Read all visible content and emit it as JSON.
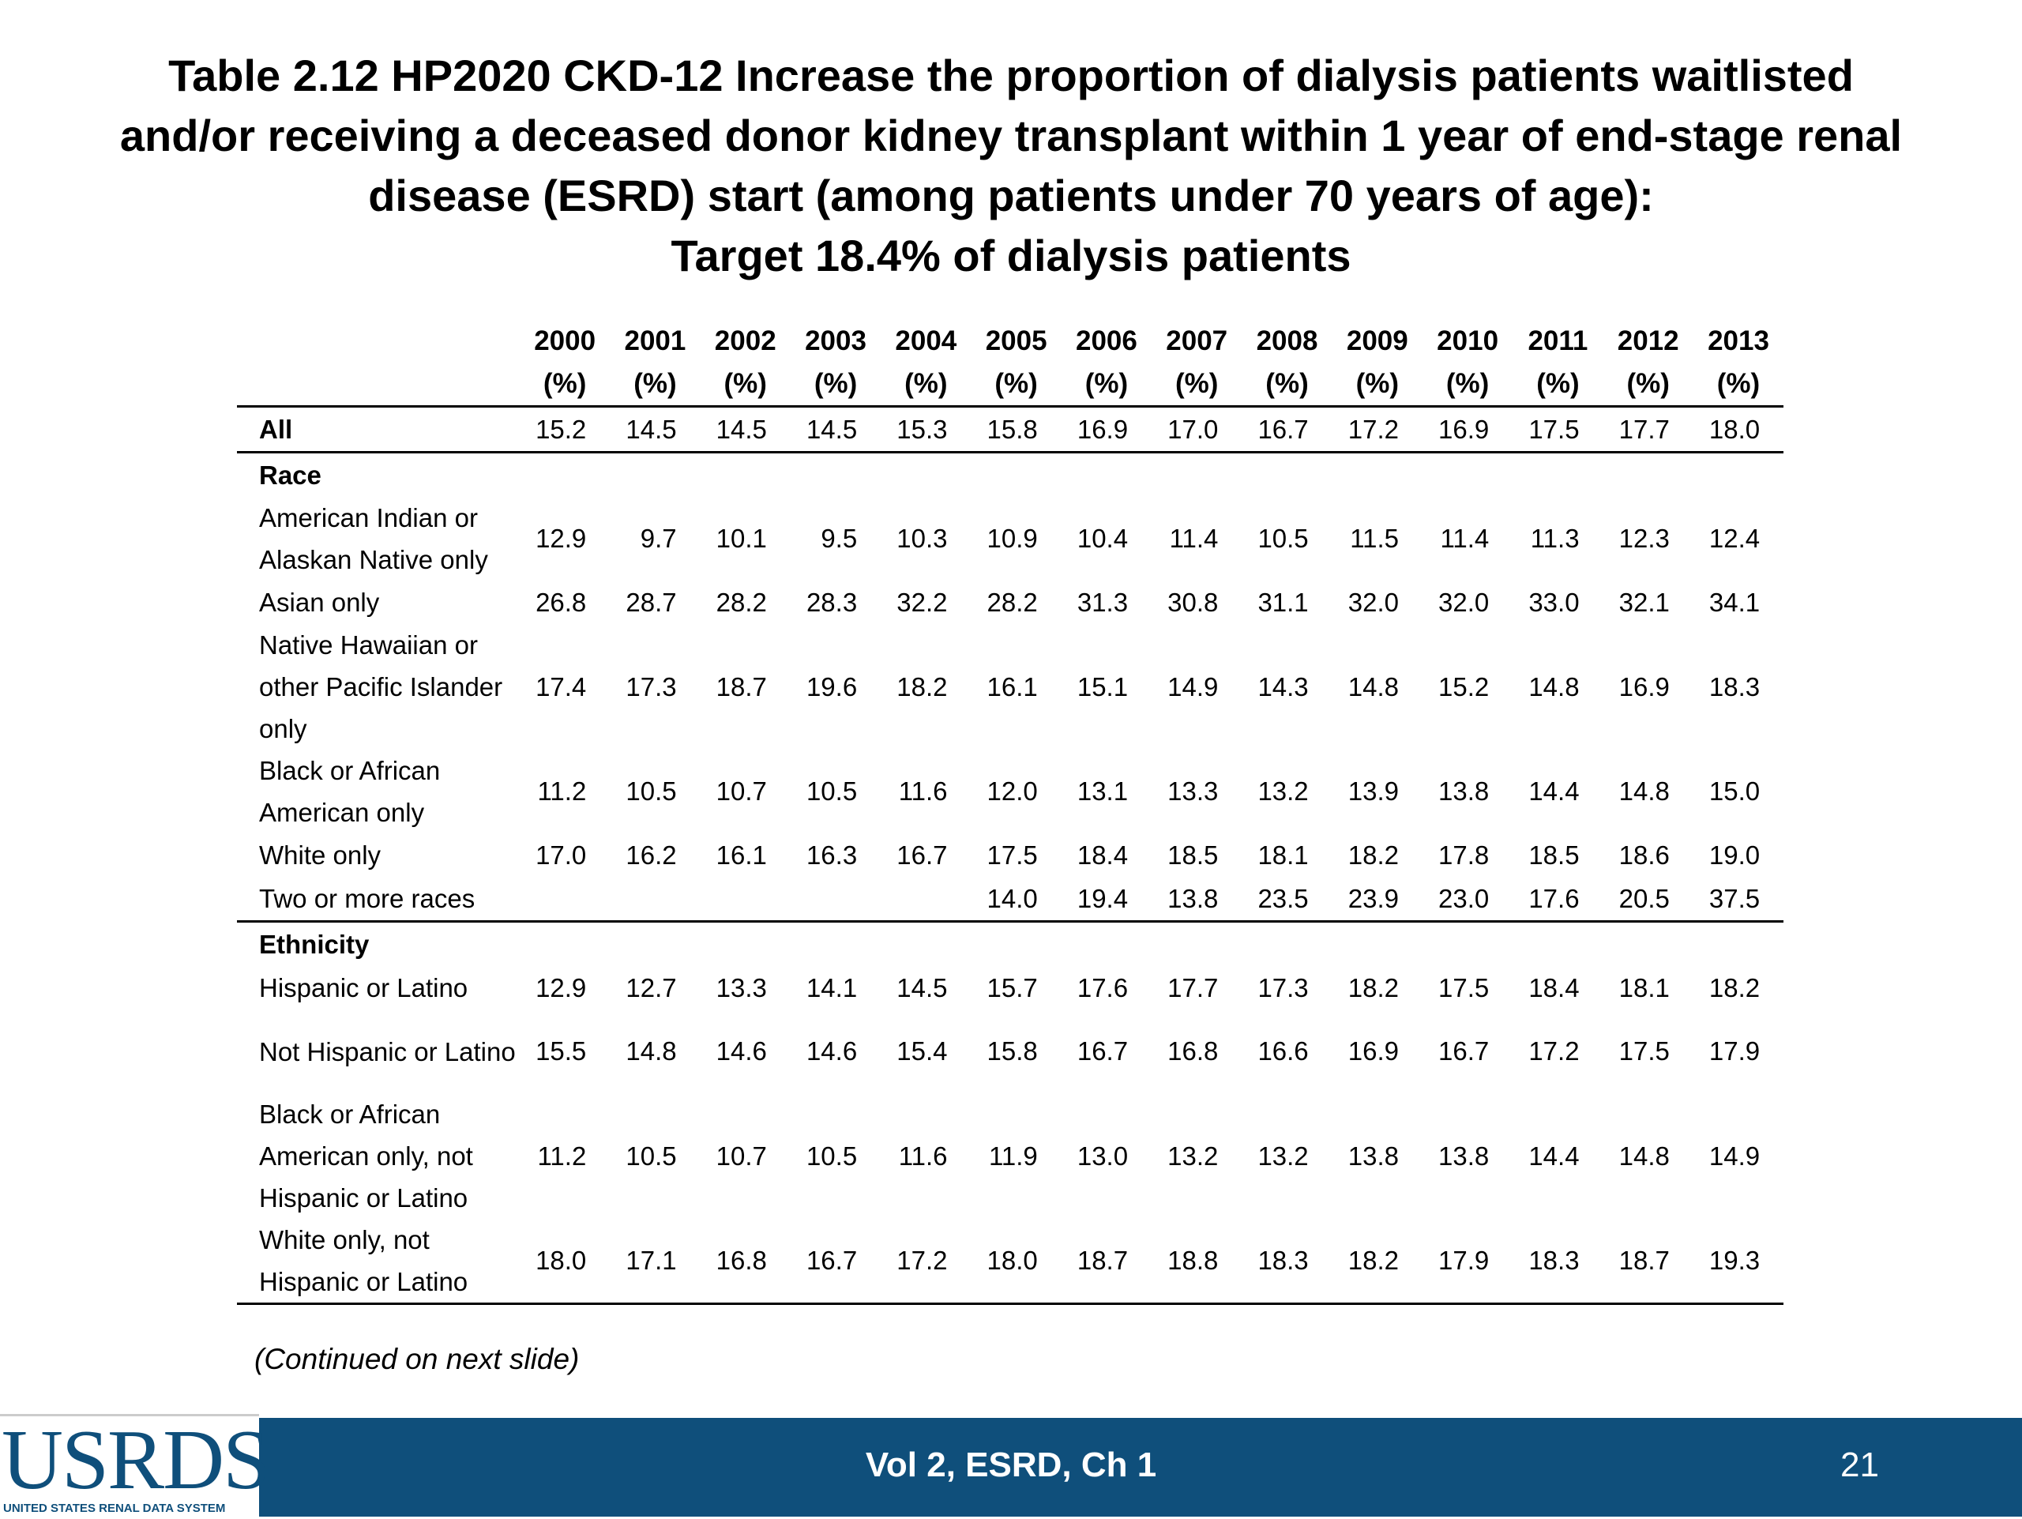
{
  "title": {
    "line1": "Table 2.12  HP2020 CKD-12 Increase the proportion of dialysis patients waitlisted",
    "line2": "and/or receiving a deceased donor kidney transplant within 1 year of end-stage renal",
    "line3": "disease (ESRD) start (among patients under 70 years of age):",
    "line4": "Target 18.4% of dialysis patients"
  },
  "table": {
    "years": [
      "2000",
      "2001",
      "2002",
      "2003",
      "2004",
      "2005",
      "2006",
      "2007",
      "2008",
      "2009",
      "2010",
      "2011",
      "2012",
      "2013"
    ],
    "unit": "(%)",
    "rows": [
      {
        "label": "All",
        "values": [
          "15.2",
          "14.5",
          "14.5",
          "14.5",
          "15.3",
          "15.8",
          "16.9",
          "17.0",
          "16.7",
          "17.2",
          "16.9",
          "17.5",
          "17.7",
          "18.0"
        ]
      },
      {
        "label": "Race",
        "values": []
      },
      {
        "label": "American Indian or Alaskan Native only",
        "values": [
          "12.9",
          "9.7",
          "10.1",
          "9.5",
          "10.3",
          "10.9",
          "10.4",
          "11.4",
          "10.5",
          "11.5",
          "11.4",
          "11.3",
          "12.3",
          "12.4"
        ]
      },
      {
        "label": "Asian only",
        "values": [
          "26.8",
          "28.7",
          "28.2",
          "28.3",
          "32.2",
          "28.2",
          "31.3",
          "30.8",
          "31.1",
          "32.0",
          "32.0",
          "33.0",
          "32.1",
          "34.1"
        ]
      },
      {
        "label": "Native Hawaiian or other Pacific Islander only",
        "values": [
          "17.4",
          "17.3",
          "18.7",
          "19.6",
          "18.2",
          "16.1",
          "15.1",
          "14.9",
          "14.3",
          "14.8",
          "15.2",
          "14.8",
          "16.9",
          "18.3"
        ]
      },
      {
        "label": "Black or African American only",
        "values": [
          "11.2",
          "10.5",
          "10.7",
          "10.5",
          "11.6",
          "12.0",
          "13.1",
          "13.3",
          "13.2",
          "13.9",
          "13.8",
          "14.4",
          "14.8",
          "15.0"
        ]
      },
      {
        "label": "White only",
        "values": [
          "17.0",
          "16.2",
          "16.1",
          "16.3",
          "16.7",
          "17.5",
          "18.4",
          "18.5",
          "18.1",
          "18.2",
          "17.8",
          "18.5",
          "18.6",
          "19.0"
        ]
      },
      {
        "label": "Two or more races",
        "values": [
          "",
          "",
          "",
          "",
          "",
          "14.0",
          "19.4",
          "13.8",
          "23.5",
          "23.9",
          "23.0",
          "17.6",
          "20.5",
          "37.5"
        ]
      },
      {
        "label": "Ethnicity",
        "values": []
      },
      {
        "label": "Hispanic or Latino",
        "values": [
          "12.9",
          "12.7",
          "13.3",
          "14.1",
          "14.5",
          "15.7",
          "17.6",
          "17.7",
          "17.3",
          "18.2",
          "17.5",
          "18.4",
          "18.1",
          "18.2"
        ]
      },
      {
        "label": "Not Hispanic or Latino",
        "values": [
          "15.5",
          "14.8",
          "14.6",
          "14.6",
          "15.4",
          "15.8",
          "16.7",
          "16.8",
          "16.6",
          "16.9",
          "16.7",
          "17.2",
          "17.5",
          "17.9"
        ]
      },
      {
        "label": "Black or African American only, not Hispanic or Latino",
        "values": [
          "11.2",
          "10.5",
          "10.7",
          "10.5",
          "11.6",
          "11.9",
          "13.0",
          "13.2",
          "13.2",
          "13.8",
          "13.8",
          "14.4",
          "14.8",
          "14.9"
        ]
      },
      {
        "label": "White only, not Hispanic or Latino",
        "values": [
          "18.0",
          "17.1",
          "16.8",
          "16.7",
          "17.2",
          "18.0",
          "18.7",
          "18.8",
          "18.3",
          "18.2",
          "17.9",
          "18.3",
          "18.7",
          "19.3"
        ]
      }
    ]
  },
  "continued_note": "(Continued on next slide)",
  "footer": {
    "logo_text": "USRDS",
    "logo_subtext": "UNITED STATES RENAL DATA SYSTEM",
    "center_text": "Vol 2, ESRD, Ch 1",
    "page_number": "21",
    "bar_color": "#0f4f7b"
  }
}
